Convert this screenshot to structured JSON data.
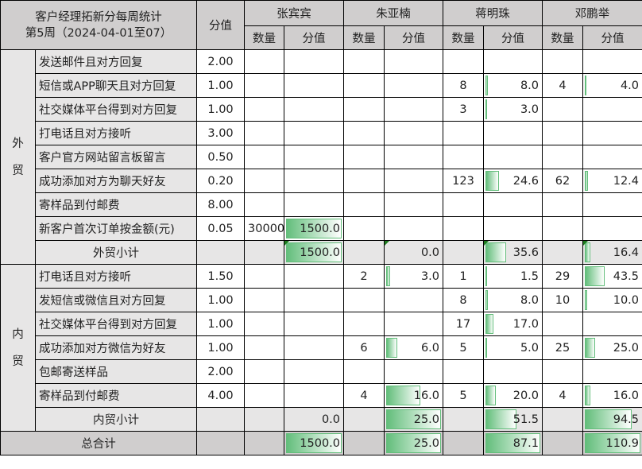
{
  "header": {
    "title": "客户经理拓新分每周统计",
    "subtitle": "第5周（2024-04-01至07）",
    "weight_label": "分值",
    "qty_label": "数量",
    "score_label": "分值",
    "people": [
      "张宾宾",
      "朱亚楠",
      "蒋明珠",
      "邓鹏举"
    ]
  },
  "bar_color": "#63be7b",
  "sections": [
    {
      "category": "外贸",
      "rows": [
        {
          "item": "发送邮件且对方回复",
          "weight": "2.00",
          "cells": [
            [
              "",
              ""
            ],
            [
              "",
              ""
            ],
            [
              "",
              ""
            ],
            [
              "",
              ""
            ]
          ]
        },
        {
          "item": "短信或APP聊天且对方回复",
          "weight": "1.00",
          "cells": [
            [
              "",
              ""
            ],
            [
              "",
              ""
            ],
            [
              "8",
              "8.0"
            ],
            [
              "4",
              "4.0"
            ]
          ]
        },
        {
          "item": "社交媒体平台得到对方回复",
          "weight": "1.00",
          "cells": [
            [
              "",
              ""
            ],
            [
              "",
              ""
            ],
            [
              "3",
              "3.0"
            ],
            [
              "",
              ""
            ]
          ]
        },
        {
          "item": "打电话且对方接听",
          "weight": "3.00",
          "cells": [
            [
              "",
              ""
            ],
            [
              "",
              ""
            ],
            [
              "",
              ""
            ],
            [
              "",
              ""
            ]
          ]
        },
        {
          "item": "客户官方网站留言板留言",
          "weight": "0.50",
          "cells": [
            [
              "",
              ""
            ],
            [
              "",
              ""
            ],
            [
              "",
              ""
            ],
            [
              "",
              ""
            ]
          ]
        },
        {
          "item": "成功添加对方为聊天好友",
          "weight": "0.20",
          "cells": [
            [
              "",
              ""
            ],
            [
              "",
              ""
            ],
            [
              "123",
              "24.6"
            ],
            [
              "62",
              "12.4"
            ]
          ]
        },
        {
          "item": "寄样品到付邮费",
          "weight": "8.00",
          "cells": [
            [
              "",
              ""
            ],
            [
              "",
              ""
            ],
            [
              "",
              ""
            ],
            [
              "",
              ""
            ]
          ]
        },
        {
          "item": "新客户首次订单按金额(元)",
          "weight": "0.05",
          "cells": [
            [
              "30000",
              "1500.0"
            ],
            [
              "",
              ""
            ],
            [
              "",
              ""
            ],
            [
              "",
              ""
            ]
          ]
        }
      ],
      "subtotal": {
        "label": "外贸小计",
        "scores": [
          "1500.0",
          "0.0",
          "35.6",
          "16.4"
        ],
        "flagged": true
      }
    },
    {
      "category": "内贸",
      "rows": [
        {
          "item": "打电话且对方接听",
          "weight": "1.50",
          "cells": [
            [
              "",
              ""
            ],
            [
              "2",
              "3.0"
            ],
            [
              "1",
              "1.5"
            ],
            [
              "29",
              "43.5"
            ]
          ]
        },
        {
          "item": "发短信或微信且对方回复",
          "weight": "1.00",
          "cells": [
            [
              "",
              ""
            ],
            [
              "",
              ""
            ],
            [
              "8",
              "8.0"
            ],
            [
              "10",
              "10.0"
            ]
          ]
        },
        {
          "item": "社交媒体平台得到对方回复",
          "weight": "1.00",
          "cells": [
            [
              "",
              ""
            ],
            [
              "",
              ""
            ],
            [
              "17",
              "17.0"
            ],
            [
              "",
              ""
            ]
          ]
        },
        {
          "item": "成功添加对方微信为好友",
          "weight": "1.00",
          "cells": [
            [
              "",
              ""
            ],
            [
              "6",
              "6.0"
            ],
            [
              "5",
              "5.0"
            ],
            [
              "25",
              "25.0"
            ]
          ]
        },
        {
          "item": "包邮寄送样品",
          "weight": "2.00",
          "cells": [
            [
              "",
              ""
            ],
            [
              "",
              ""
            ],
            [
              "",
              ""
            ],
            [
              "",
              ""
            ]
          ]
        },
        {
          "item": "寄样品到付邮费",
          "weight": "4.00",
          "cells": [
            [
              "",
              ""
            ],
            [
              "4",
              "16.0"
            ],
            [
              "5",
              "20.0"
            ],
            [
              "4",
              "16.0"
            ]
          ]
        }
      ],
      "subtotal": {
        "label": "内贸小计",
        "scores": [
          "0.0",
          "25.0",
          "51.5",
          "94.5"
        ],
        "flagged": false
      }
    }
  ],
  "total": {
    "label": "总合计",
    "scores": [
      "1500.0",
      "25.0",
      "87.1",
      "110.9"
    ]
  }
}
